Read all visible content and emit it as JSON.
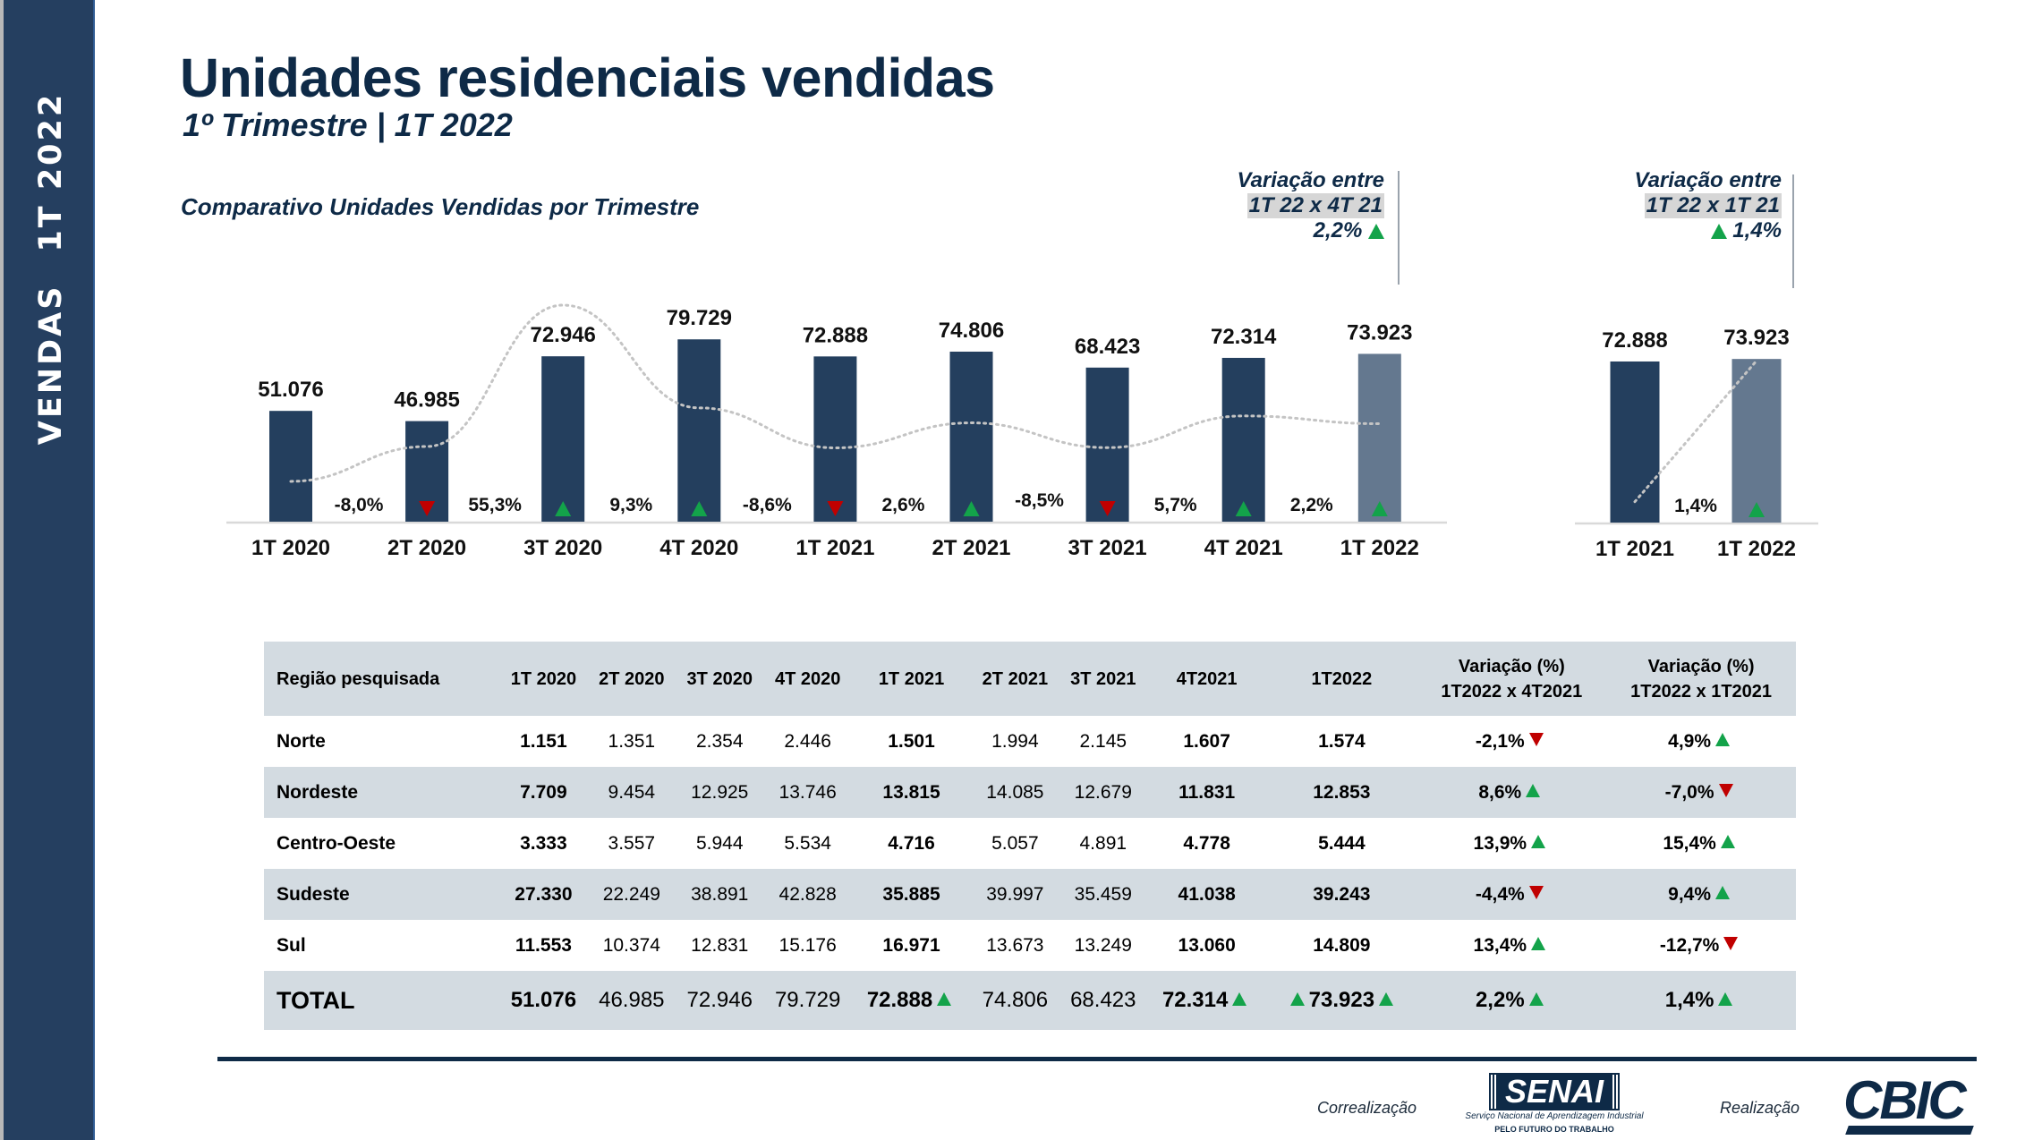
{
  "sidebar": {
    "label_section": "VENDAS",
    "label_period": "1T 2022"
  },
  "header": {
    "title": "Unidades residenciais vendidas",
    "subtitle": "1º Trimestre | 1T 2022"
  },
  "colors": {
    "navy": "#0e2a47",
    "bar_dark": "#243f5e",
    "bar_highlight": "#64788f",
    "up": "#13a34a",
    "down": "#c00000",
    "table_shade": "#d3dbe1",
    "trend_line": "#c4c4c4"
  },
  "variation_boxes": [
    {
      "heading": "Variação entre",
      "comparison": "1T 22 x 4T 21",
      "value": "2,2%",
      "direction": "up"
    },
    {
      "heading": "Variação entre",
      "comparison": "1T 22 x 1T 21",
      "value": "1,4%",
      "direction": "up"
    }
  ],
  "chart_data": [
    {
      "type": "bar",
      "title": "Comparativo Unidades Vendidas por Trimestre",
      "xlabel": "",
      "ylabel": "",
      "categories": [
        "1T 2020",
        "2T 2020",
        "3T 2020",
        "4T 2020",
        "1T 2021",
        "2T 2021",
        "3T 2021",
        "4T 2021",
        "1T 2022"
      ],
      "values": [
        51076,
        46985,
        72946,
        79729,
        72888,
        74806,
        68423,
        72314,
        73923
      ],
      "value_labels": [
        "51.076",
        "46.985",
        "72.946",
        "79.729",
        "72.888",
        "74.806",
        "68.423",
        "72.314",
        "73.923"
      ],
      "highlight_index": 8,
      "ylim": [
        6700,
        85000
      ],
      "grid": false,
      "variation_labels": [
        null,
        "-8,0%",
        "55,3%",
        "9,3%",
        "-8,6%",
        "2,6%",
        "-8,5%",
        "5,7%",
        "2,2%"
      ],
      "variation_directions": [
        null,
        "down",
        "up",
        "up",
        "down",
        "up",
        "down",
        "up",
        "up"
      ],
      "trend_line": {
        "unit": "%",
        "values": [
          -23.6,
          -8.0,
          55.3,
          9.3,
          -8.6,
          2.6,
          -8.5,
          5.7,
          2.2
        ],
        "style": "dotted"
      }
    },
    {
      "type": "bar",
      "title": "",
      "categories": [
        "1T 2021",
        "1T 2022"
      ],
      "values": [
        72888,
        73923
      ],
      "value_labels": [
        "72.888",
        "73.923"
      ],
      "highlight_index": 1,
      "ylim": [
        6700,
        80000
      ],
      "grid": false,
      "variation_labels": [
        null,
        "1,4%"
      ],
      "variation_directions": [
        null,
        "up"
      ],
      "trend_line": {
        "unit": "units",
        "values": [
          16000,
          73923
        ],
        "style": "dotted"
      }
    }
  ],
  "table": {
    "headers": [
      "Região pesquisada",
      "1T 2020",
      "2T 2020",
      "3T 2020",
      "4T 2020",
      "1T 2021",
      "2T 2021",
      "3T 2021",
      "4T2021",
      "1T2022"
    ],
    "var_headers": [
      {
        "line1": "Variação (%)",
        "line2": "1T2022 x 4T2021"
      },
      {
        "line1": "Variação (%)",
        "line2": "1T2022 x 1T2021"
      }
    ],
    "rows": [
      {
        "region": "Norte",
        "values": [
          "1.151",
          "1.351",
          "2.354",
          "2.446",
          "1.501",
          "1.994",
          "2.145",
          "1.607",
          "1.574"
        ],
        "var1": "-2,1%",
        "var1_dir": "down",
        "var2": "4,9%",
        "var2_dir": "up"
      },
      {
        "region": "Nordeste",
        "values": [
          "7.709",
          "9.454",
          "12.925",
          "13.746",
          "13.815",
          "14.085",
          "12.679",
          "11.831",
          "12.853"
        ],
        "var1": "8,6%",
        "var1_dir": "up",
        "var2": "-7,0%",
        "var2_dir": "down"
      },
      {
        "region": "Centro-Oeste",
        "values": [
          "3.333",
          "3.557",
          "5.944",
          "5.534",
          "4.716",
          "5.057",
          "4.891",
          "4.778",
          "5.444"
        ],
        "var1": "13,9%",
        "var1_dir": "up",
        "var2": "15,4%",
        "var2_dir": "up"
      },
      {
        "region": "Sudeste",
        "values": [
          "27.330",
          "22.249",
          "38.891",
          "42.828",
          "35.885",
          "39.997",
          "35.459",
          "41.038",
          "39.243"
        ],
        "var1": "-4,4%",
        "var1_dir": "down",
        "var2": "9,4%",
        "var2_dir": "up"
      },
      {
        "region": "Sul",
        "values": [
          "11.553",
          "10.374",
          "12.831",
          "15.176",
          "16.971",
          "13.673",
          "13.249",
          "13.060",
          "14.809"
        ],
        "var1": "13,4%",
        "var1_dir": "up",
        "var2": "-12,7%",
        "var2_dir": "down"
      }
    ],
    "total": {
      "region": "TOTAL",
      "values": [
        "51.076",
        "46.985",
        "72.946",
        "79.729",
        "72.888",
        "74.806",
        "68.423",
        "72.314",
        "73.923"
      ],
      "var1": "2,2%",
      "var1_dir": "up",
      "var2": "1,4%",
      "var2_dir": "up"
    }
  },
  "footer": {
    "correalizacao": "Correalização",
    "realizacao": "Realização",
    "senai_logo": {
      "word": "SENAI",
      "line1": "Serviço Nacional de Aprendizagem Industrial",
      "line2": "PELO FUTURO DO TRABALHO"
    },
    "cbic_logo": {
      "word": "CBIC"
    }
  }
}
